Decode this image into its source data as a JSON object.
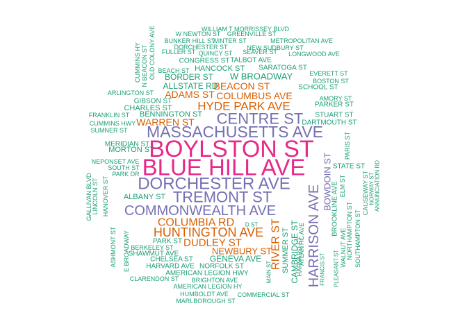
{
  "colors": {
    "tier1": "#e7298a",
    "tier2": "#7570b3",
    "tier3": "#d95f02",
    "tier4": "#1b9e77"
  },
  "words": [
    {
      "text": "BOYLSTON ST",
      "tier": 1
    },
    {
      "text": "BLUE HILL AVE",
      "tier": 1
    },
    {
      "text": "MASSACHUSETTS AVE",
      "tier": 2
    },
    {
      "text": "DORCHESTER AVE",
      "tier": 2
    },
    {
      "text": "TREMONT ST",
      "tier": 2
    },
    {
      "text": "COMMONWEALTH AVE",
      "tier": 2
    },
    {
      "text": "CENTRE ST",
      "tier": 2
    },
    {
      "text": "HARRISON AVE",
      "tier": 2
    },
    {
      "text": "HYDE PARK AVE",
      "tier": 3
    },
    {
      "text": "HUNTINGTON AVE",
      "tier": 3
    },
    {
      "text": "COLUMBIA RD",
      "tier": 3
    },
    {
      "text": "DUDLEY ST",
      "tier": 3
    },
    {
      "text": "RIVER ST",
      "tier": 3
    },
    {
      "text": "BEACON ST",
      "tier": 3
    },
    {
      "text": "COLUMBUS AVE",
      "tier": 3
    },
    {
      "text": "ADAMS ST",
      "tier": 3
    },
    {
      "text": "WARREN ST",
      "tier": 3
    },
    {
      "text": "NEWBURY ST",
      "tier": 3
    },
    {
      "text": "BOWDOIN ST",
      "tier": 2
    },
    {
      "text": "W BROADWAY",
      "tier": 4
    },
    {
      "text": "ALLSTATE RD",
      "tier": 4
    },
    {
      "text": "BORDER ST",
      "tier": 4
    },
    {
      "text": "HANCOCK ST",
      "tier": 4
    },
    {
      "text": "GENEVA AVE",
      "tier": 4
    },
    {
      "text": "SUMMER ST",
      "tier": 4
    },
    {
      "text": "CAMBRIDGE ST",
      "tier": 4
    },
    {
      "text": "ALBANY ST",
      "tier": 4
    },
    {
      "text": "MORTON ST",
      "tier": 4
    },
    {
      "text": "BENNINGTON ST",
      "tier": 4
    },
    {
      "text": "CHARLES ST",
      "tier": 4
    },
    {
      "text": "GIBSON ST",
      "tier": 4
    },
    {
      "text": "MERIDIAN ST",
      "tier": 4
    },
    {
      "text": "STUART ST",
      "tier": 4
    },
    {
      "text": "DARTMOUTH ST",
      "tier": 4
    },
    {
      "text": "STATE ST",
      "tier": 4
    },
    {
      "text": "PARKER ST",
      "tier": 4
    },
    {
      "text": "AMORY ST",
      "tier": 4
    },
    {
      "text": "SCHOOL ST",
      "tier": 4
    },
    {
      "text": "BOSTON ST",
      "tier": 4
    },
    {
      "text": "EVERETT ST",
      "tier": 4
    },
    {
      "text": "SARATOGA ST",
      "tier": 4
    },
    {
      "text": "TALBOT AVE",
      "tier": 4
    },
    {
      "text": "CONGRESS ST",
      "tier": 4
    },
    {
      "text": "QUINCY ST",
      "tier": 4
    },
    {
      "text": "FULLER ST",
      "tier": 4
    },
    {
      "text": "SEAVER ST",
      "tier": 4
    },
    {
      "text": "LONGWOOD AVE",
      "tier": 4
    },
    {
      "text": "METROPOLITAN AVE",
      "tier": 4
    },
    {
      "text": "NEW SUDBURY ST",
      "tier": 4
    },
    {
      "text": "DORCHESTER ST",
      "tier": 4
    },
    {
      "text": "BUNKER HILL ST",
      "tier": 4
    },
    {
      "text": "WINTER ST",
      "tier": 4
    },
    {
      "text": "W NEWTON ST",
      "tier": 4
    },
    {
      "text": "GREENVILLE ST",
      "tier": 4
    },
    {
      "text": "WILLIAM T MORRISSEY BLVD",
      "tier": 4
    },
    {
      "text": "BEACH ST",
      "tier": 4
    },
    {
      "text": "ARLINGTON ST",
      "tier": 4
    },
    {
      "text": "FRANKLIN ST",
      "tier": 4
    },
    {
      "text": "CUMMINS HWY",
      "tier": 4
    },
    {
      "text": "SUMNER ST",
      "tier": 4
    },
    {
      "text": "NEPONSET AVE",
      "tier": 4
    },
    {
      "text": "SOUTH ST",
      "tier": 4
    },
    {
      "text": "PARK DR",
      "tier": 4
    },
    {
      "text": "PARK ST",
      "tier": 4
    },
    {
      "text": "BERKELEY ST",
      "tier": 4
    },
    {
      "text": "SHAWMUT AVE",
      "tier": 4
    },
    {
      "text": "CHELSEA ST",
      "tier": 4
    },
    {
      "text": "HARVARD AVE",
      "tier": 4
    },
    {
      "text": "NORFOLK ST",
      "tier": 4
    },
    {
      "text": "AMERICAN LEGION HWY",
      "tier": 4
    },
    {
      "text": "BRIGHTON AVE",
      "tier": 4
    },
    {
      "text": "CLARENDON ST",
      "tier": 4
    },
    {
      "text": "AMERICAN LEGION HY",
      "tier": 4
    },
    {
      "text": "HUMBOLDT AVE",
      "tier": 4
    },
    {
      "text": "COMMERCIAL ST",
      "tier": 4
    },
    {
      "text": "MARLBOROUGH ST",
      "tier": 4
    },
    {
      "text": "D ST",
      "tier": 4
    },
    {
      "text": "MAIN ST",
      "tier": 4
    },
    {
      "text": "ATLANTIC AVE",
      "tier": 4
    },
    {
      "text": "HARVARD ST",
      "tier": 4
    },
    {
      "text": "FRANCIS ST",
      "tier": 4
    },
    {
      "text": "BROOKLINE AVE",
      "tier": 4
    },
    {
      "text": "WALNUT AVE",
      "tier": 4
    },
    {
      "text": "PLEASANT ST",
      "tier": 4
    },
    {
      "text": "ELM ST",
      "tier": 4
    },
    {
      "text": "NORTHAMPTON ST",
      "tier": 4
    },
    {
      "text": "SOUTHAMPTON ST",
      "tier": 4
    },
    {
      "text": "CAUSEWAY ST",
      "tier": 4
    },
    {
      "text": "NORWAY ST",
      "tier": 4
    },
    {
      "text": "ANNUNCIATION RD",
      "tier": 4
    },
    {
      "text": "PARIS ST",
      "tier": 4
    },
    {
      "text": "CUMMINS HY",
      "tier": 4
    },
    {
      "text": "N BEACON ST",
      "tier": 4
    },
    {
      "text": "OLD COLONY AVE",
      "tier": 4
    },
    {
      "text": "GALLIVAN BLVD",
      "tier": 4
    },
    {
      "text": "LINCOLN ST",
      "tier": 4
    },
    {
      "text": "HANOVER ST",
      "tier": 4
    },
    {
      "text": "ASHMONT ST",
      "tier": 4
    },
    {
      "text": "E BROADWAY",
      "tier": 4
    }
  ]
}
